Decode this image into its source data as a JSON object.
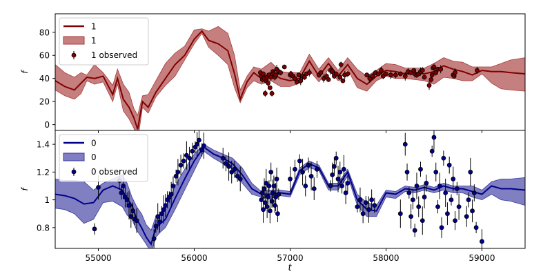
{
  "chart_data": [
    {
      "type": "line",
      "panel": "top",
      "xlabel": "",
      "ylabel": "f",
      "xlim": [
        54550,
        59450
      ],
      "ylim": [
        -5,
        96
      ],
      "yticks": [
        0,
        20,
        40,
        60,
        80
      ],
      "grid": false,
      "legend_position": "top-left",
      "colors": {
        "line": "#800000",
        "band": "#a83a3a",
        "points": "#800000"
      },
      "legend": {
        "line": "1",
        "band": "1",
        "points": "1 observed"
      },
      "series": [
        {
          "role": "model",
          "x": [
            54550,
            54650,
            54750,
            54820,
            54880,
            54960,
            55050,
            55150,
            55200,
            55260,
            55320,
            55370,
            55410,
            55460,
            55520,
            55600,
            55700,
            55800,
            55900,
            56000,
            56080,
            56150,
            56250,
            56350,
            56420,
            56480,
            56550,
            56620,
            56700,
            56800,
            56900,
            57000,
            57100,
            57200,
            57300,
            57400,
            57500,
            57600,
            57700,
            57800,
            57900,
            58000,
            58100,
            58200,
            58300,
            58400,
            58500,
            58600,
            58700,
            58800,
            58900,
            59000,
            59100,
            59200,
            59300,
            59450
          ],
          "y": [
            38,
            33,
            30,
            36,
            41,
            40,
            42,
            26,
            40,
            22,
            15,
            6,
            -4,
            20,
            15,
            28,
            40,
            52,
            60,
            74,
            81,
            73,
            70,
            64,
            44,
            22,
            37,
            45,
            40,
            45,
            40,
            38,
            40,
            55,
            42,
            53,
            42,
            52,
            40,
            35,
            42,
            47,
            46,
            44,
            44,
            44,
            46,
            51,
            48,
            46,
            43,
            47,
            46,
            46,
            45,
            44
          ],
          "band_upper": [
            52,
            45,
            41,
            45,
            43,
            52,
            45,
            34,
            48,
            35,
            28,
            14,
            8,
            25,
            26,
            38,
            53,
            62,
            68,
            82,
            83,
            81,
            85,
            79,
            60,
            30,
            42,
            50,
            48,
            54,
            46,
            45,
            45,
            61,
            48,
            58,
            47,
            58,
            48,
            42,
            47,
            53,
            52,
            49,
            49,
            49,
            53,
            58,
            55,
            54,
            50,
            50,
            50,
            53,
            56,
            58
          ],
          "band_lower": [
            30,
            25,
            22,
            27,
            38,
            35,
            37,
            20,
            35,
            12,
            5,
            -3,
            -14,
            15,
            10,
            24,
            34,
            42,
            56,
            70,
            79,
            67,
            60,
            52,
            32,
            19,
            32,
            38,
            35,
            38,
            33,
            33,
            36,
            47,
            37,
            48,
            38,
            48,
            32,
            29,
            38,
            42,
            40,
            40,
            39,
            38,
            35,
            41,
            40,
            38,
            38,
            44,
            36,
            31,
            30,
            29
          ]
        },
        {
          "role": "observed",
          "x": [
            56690,
            56700,
            56710,
            56720,
            56730,
            56740,
            56750,
            56760,
            56770,
            56780,
            56790,
            56800,
            56810,
            56820,
            56830,
            56840,
            56850,
            56860,
            56880,
            56900,
            56940,
            57000,
            57010,
            57030,
            57050,
            57070,
            57090,
            57110,
            57130,
            57150,
            57170,
            57200,
            57300,
            57320,
            57350,
            57380,
            57400,
            57420,
            57440,
            57460,
            57480,
            57520,
            57530,
            57550,
            57570,
            57600,
            57800,
            57830,
            57860,
            57890,
            57920,
            57950,
            57970,
            58000,
            58050,
            58100,
            58150,
            58200,
            58230,
            58260,
            58290,
            58300,
            58320,
            58340,
            58360,
            58380,
            58400,
            58450,
            58470,
            58480,
            58490,
            58500,
            58520,
            58540,
            58570,
            58700,
            58710,
            58720,
            58950
          ],
          "y": [
            45,
            42,
            39,
            44,
            40,
            27,
            38,
            41,
            36,
            43,
            32,
            41,
            27,
            46,
            44,
            41,
            43,
            48,
            46,
            45,
            50,
            43,
            44,
            42,
            40,
            37,
            43,
            38,
            42,
            41,
            44,
            45,
            43,
            45,
            40,
            42,
            39,
            47,
            46,
            42,
            44,
            41,
            52,
            38,
            43,
            44,
            43,
            40,
            42,
            45,
            44,
            47,
            42,
            44,
            43,
            43,
            44,
            42,
            46,
            45,
            47,
            44,
            43,
            44,
            46,
            47,
            41,
            34,
            39,
            43,
            49,
            50,
            45,
            48,
            48,
            43,
            42,
            45,
            47
          ]
        }
      ]
    },
    {
      "type": "line",
      "panel": "bottom",
      "xlabel": "t",
      "ylabel": "f",
      "xlim": [
        54550,
        59450
      ],
      "ylim": [
        0.65,
        1.5
      ],
      "xticks": [
        55000,
        56000,
        57000,
        58000,
        59000
      ],
      "yticks": [
        0.8,
        1.0,
        1.2,
        1.4
      ],
      "grid": false,
      "legend_position": "top-left",
      "colors": {
        "line": "#00008b",
        "band": "#3a3aa0",
        "points": "#00008b"
      },
      "legend": {
        "line": "0",
        "band": "0",
        "points": "0 observed"
      },
      "series": [
        {
          "role": "model",
          "x": [
            54550,
            54650,
            54750,
            54850,
            54950,
            55050,
            55150,
            55250,
            55300,
            55350,
            55400,
            55450,
            55500,
            55550,
            55600,
            55650,
            55700,
            55800,
            55900,
            56000,
            56100,
            56200,
            56300,
            56400,
            56500,
            56600,
            56700,
            56800,
            56900,
            57000,
            57100,
            57200,
            57300,
            57400,
            57500,
            57600,
            57700,
            57800,
            57900,
            58000,
            58100,
            58200,
            58300,
            58400,
            58500,
            58600,
            58700,
            58800,
            58900,
            59000,
            59100,
            59200,
            59300,
            59450
          ],
          "y": [
            1.04,
            1.03,
            1.01,
            0.97,
            0.98,
            1.07,
            1.1,
            1.07,
            1.01,
            0.96,
            0.86,
            0.8,
            0.73,
            0.68,
            0.8,
            0.83,
            0.86,
            1.01,
            1.15,
            1.28,
            1.38,
            1.33,
            1.3,
            1.26,
            1.18,
            1.08,
            1.04,
            1.04,
            1.05,
            1.04,
            1.21,
            1.26,
            1.23,
            1.1,
            1.1,
            1.2,
            1.0,
            0.93,
            0.92,
            1.05,
            1.04,
            1.08,
            1.07,
            1.09,
            1.07,
            1.1,
            1.08,
            1.08,
            1.06,
            1.04,
            1.1,
            1.08,
            1.08,
            1.07
          ],
          "band_upper": [
            1.15,
            1.14,
            1.14,
            1.13,
            1.07,
            1.12,
            1.15,
            1.18,
            1.12,
            1.02,
            0.95,
            0.9,
            0.82,
            0.78,
            0.88,
            0.9,
            0.94,
            1.1,
            1.22,
            1.33,
            1.4,
            1.36,
            1.33,
            1.3,
            1.23,
            1.12,
            1.06,
            1.07,
            1.07,
            1.06,
            1.23,
            1.28,
            1.25,
            1.12,
            1.12,
            1.22,
            1.04,
            0.98,
            0.96,
            1.07,
            1.06,
            1.1,
            1.09,
            1.11,
            1.09,
            1.12,
            1.1,
            1.1,
            1.1,
            1.07,
            1.13,
            1.15,
            1.15,
            1.16
          ],
          "band_lower": [
            0.94,
            0.93,
            0.9,
            0.83,
            0.86,
            0.98,
            0.99,
            0.95,
            0.89,
            0.86,
            0.78,
            0.73,
            0.68,
            0.62,
            0.73,
            0.77,
            0.8,
            0.93,
            1.07,
            1.21,
            1.35,
            1.3,
            1.26,
            1.22,
            1.12,
            1.04,
            1.02,
            1.01,
            1.03,
            1.02,
            1.18,
            1.23,
            1.21,
            1.07,
            1.07,
            1.17,
            0.96,
            0.88,
            0.88,
            1.02,
            1.01,
            1.06,
            1.05,
            1.07,
            1.05,
            1.07,
            1.05,
            1.05,
            1.02,
            1.0,
            1.04,
            1.0,
            0.99,
            0.96
          ]
        },
        {
          "role": "observed",
          "x": [
            54960,
            55000,
            55220,
            55240,
            55260,
            55280,
            55300,
            55320,
            55340,
            55360,
            55380,
            55400,
            55580,
            55600,
            55620,
            55640,
            55660,
            55680,
            55700,
            55720,
            55740,
            55760,
            55780,
            55810,
            55830,
            55860,
            55890,
            55920,
            55950,
            55980,
            56010,
            56030,
            56050,
            56080,
            56100,
            56300,
            56330,
            56360,
            56390,
            56420,
            56450,
            56480,
            56700,
            56710,
            56720,
            56730,
            56740,
            56750,
            56760,
            56770,
            56780,
            56790,
            56800,
            56810,
            56820,
            56830,
            56840,
            56850,
            56860,
            56870,
            56880,
            57000,
            57050,
            57100,
            57130,
            57160,
            57190,
            57220,
            57250,
            57280,
            57420,
            57440,
            57460,
            57480,
            57500,
            57520,
            57540,
            57560,
            57580,
            57600,
            57700,
            57730,
            57760,
            57790,
            57820,
            57850,
            57880,
            58150,
            58200,
            58220,
            58240,
            58260,
            58280,
            58300,
            58320,
            58340,
            58360,
            58380,
            58400,
            58420,
            58480,
            58500,
            58520,
            58540,
            58560,
            58580,
            58600,
            58620,
            58640,
            58660,
            58680,
            58700,
            58720,
            58740,
            58760,
            58840,
            58860,
            58880,
            58900,
            58920,
            58940,
            59000
          ],
          "y": [
            0.79,
            1.09,
            1.14,
            1.05,
            1.1,
            1.02,
            1.0,
            0.96,
            0.88,
            0.92,
            0.86,
            0.85,
            0.72,
            0.81,
            0.88,
            0.84,
            0.9,
            0.93,
            0.96,
            1.0,
            1.02,
            1.04,
            1.1,
            1.17,
            1.2,
            1.25,
            1.28,
            1.32,
            1.3,
            1.35,
            1.38,
            1.4,
            1.43,
            1.36,
            1.39,
            1.3,
            1.26,
            1.24,
            1.2,
            1.22,
            1.17,
            1.15,
            1.0,
            1.05,
            0.93,
            1.08,
            0.98,
            1.12,
            0.95,
            1.02,
            1.1,
            0.92,
            1.2,
            0.99,
            1.05,
            1.1,
            0.96,
            1.02,
            1.15,
            0.9,
            1.04,
            1.15,
            1.22,
            1.28,
            1.2,
            1.1,
            1.25,
            1.17,
            1.08,
            1.22,
            1.1,
            1.18,
            1.24,
            1.3,
            1.15,
            1.2,
            1.1,
            1.22,
            1.05,
            1.12,
            0.95,
            1.0,
            0.9,
            0.98,
            0.93,
            1.0,
            0.96,
            0.9,
            1.4,
            1.2,
            1.05,
            0.88,
            1.0,
            0.78,
            1.1,
            0.95,
            1.22,
            0.85,
            1.02,
            1.12,
            1.35,
            1.45,
            1.2,
            0.95,
            1.1,
            0.8,
            1.3,
            1.05,
            0.9,
            1.25,
            1.0,
            1.15,
            0.85,
            1.08,
            0.95,
            0.88,
            1.0,
            1.2,
            0.92,
            1.05,
            0.8,
            0.7
          ]
        }
      ]
    }
  ]
}
